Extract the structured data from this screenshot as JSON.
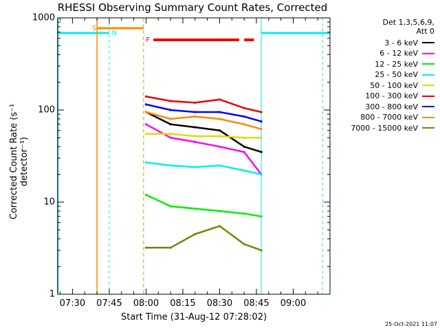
{
  "chart_data": {
    "type": "line",
    "title": "RHESSI Observing Summary Count Rates, Corrected",
    "xlabel": "Start Time (31-Aug-12 07:28:02)",
    "ylabel": "Corrected Count Rate (s⁻¹ detector⁻¹)",
    "yscale": "log",
    "ylim": [
      1,
      1000
    ],
    "xlim": [
      "07:24",
      "09:15"
    ],
    "x_ticks": [
      "07:30",
      "07:45",
      "08:00",
      "08:15",
      "08:30",
      "08:45",
      "09:00"
    ],
    "y_ticks": [
      "1",
      "10",
      "100",
      "1000"
    ],
    "legend_header": [
      "Det 1,3,5,6,9,",
      "Att 0"
    ],
    "legend_position": "right",
    "x": [
      "08:00",
      "08:10",
      "08:20",
      "08:30",
      "08:40",
      "08:47"
    ],
    "series": [
      {
        "name": "3 - 6 keV",
        "color": "#000000",
        "values": [
          95,
          70,
          65,
          60,
          40,
          35
        ]
      },
      {
        "name": "6 - 12 keV",
        "color": "#ff00ff",
        "values": [
          70,
          50,
          45,
          40,
          35,
          20
        ]
      },
      {
        "name": "12 - 25 keV",
        "color": "#00ee00",
        "values": [
          12,
          9,
          8.5,
          8,
          7.5,
          7
        ]
      },
      {
        "name": "25 - 50 keV",
        "color": "#00eeee",
        "values": [
          27,
          25,
          24,
          25,
          22,
          20
        ]
      },
      {
        "name": "50 - 100 keV",
        "color": "#dddd00",
        "values": [
          55,
          55,
          52,
          52,
          50,
          50
        ]
      },
      {
        "name": "100 - 300 keV",
        "color": "#ee0000",
        "values": [
          140,
          125,
          120,
          130,
          105,
          95
        ]
      },
      {
        "name": "300 - 800 keV",
        "color": "#0000ff",
        "values": [
          115,
          100,
          95,
          95,
          85,
          75
        ]
      },
      {
        "name": "800 - 7000 keV",
        "color": "#ff8800",
        "values": [
          95,
          80,
          85,
          80,
          70,
          62
        ]
      },
      {
        "name": "7000 - 15000 keV",
        "color": "#808000",
        "values": [
          3.2,
          3.2,
          4.5,
          5.5,
          3.5,
          3
        ]
      }
    ],
    "annotations": {
      "saa_label": "S",
      "night_label": "N",
      "flare_label": "F"
    }
  },
  "timestamp": "25-Oct-2021 11:07"
}
